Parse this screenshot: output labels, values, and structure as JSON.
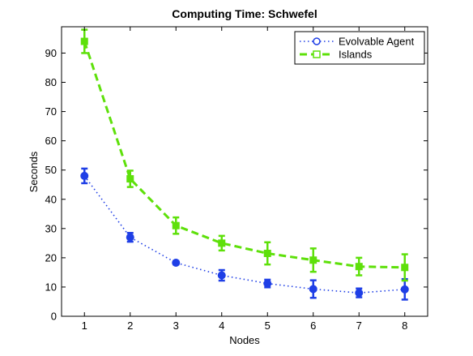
{
  "chart_data": {
    "type": "line",
    "title": "Computing Time: Schwefel",
    "xlabel": "Nodes",
    "ylabel": "Seconds",
    "x": [
      1,
      2,
      3,
      4,
      5,
      6,
      7,
      8
    ],
    "xlim": [
      0.5,
      8.5
    ],
    "ylim": [
      0,
      99
    ],
    "xticks": [
      1,
      2,
      3,
      4,
      5,
      6,
      7,
      8
    ],
    "yticks": [
      0,
      10,
      20,
      30,
      40,
      50,
      60,
      70,
      80,
      90
    ],
    "grid": false,
    "legend_position": "top-right",
    "series": [
      {
        "name": "Evolvable Agent",
        "color": "#1f3fe6",
        "line_style": "dotted",
        "marker": "circle",
        "values": [
          48,
          27,
          18.3,
          14,
          11.2,
          9.3,
          8,
          9.2
        ],
        "error": [
          2.5,
          1.5,
          0.6,
          1.8,
          1.3,
          3,
          1.5,
          3.5
        ]
      },
      {
        "name": "Islands",
        "color": "#5ee00a",
        "line_style": "dashed",
        "marker": "square",
        "values": [
          94,
          47,
          31,
          25,
          21.5,
          19.2,
          17,
          16.7
        ],
        "error": [
          4,
          2.8,
          2.8,
          2.5,
          3.8,
          4,
          3,
          4.5
        ]
      }
    ]
  }
}
